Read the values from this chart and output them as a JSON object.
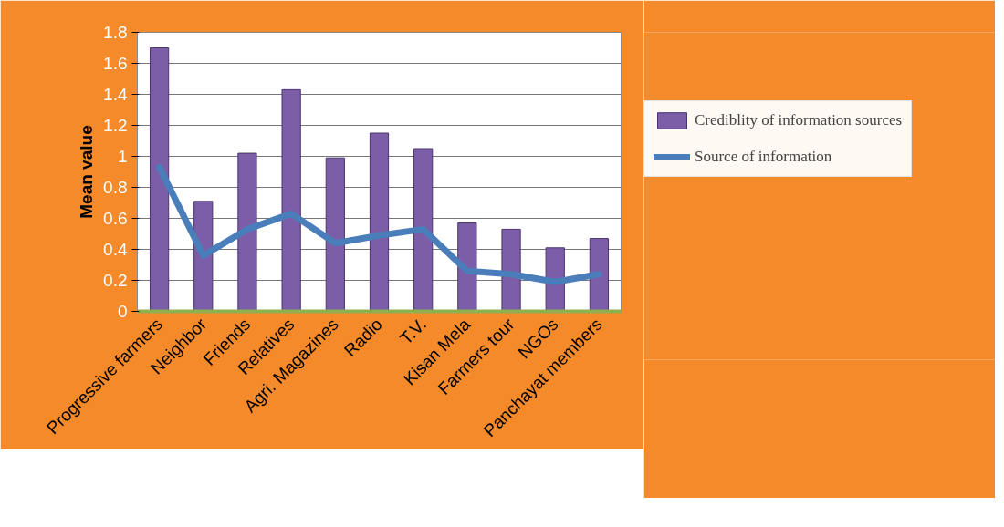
{
  "chart_data": {
    "type": "bar",
    "ylabel": "Mean value",
    "categories": [
      "Progressive farmers",
      "Neighbor",
      "Friends",
      "Relatives",
      "Agri. Magazines",
      "Radio",
      "T.V.",
      "Kisan Mela",
      "Farmers tour",
      "NGOs",
      "Panchayat members"
    ],
    "series": [
      {
        "name": "Crediblity of information sources",
        "color": "#7b5ea7",
        "values": [
          1.7,
          0.71,
          1.02,
          1.43,
          0.99,
          1.15,
          1.05,
          0.57,
          0.53,
          0.41,
          0.47
        ]
      },
      {
        "name": "Source of information",
        "type": "line",
        "color": "#4a7ebb",
        "values": [
          0.93,
          0.36,
          0.53,
          0.63,
          0.44,
          0.49,
          0.53,
          0.26,
          0.24,
          0.19,
          0.24
        ]
      }
    ],
    "ylim": [
      0,
      1.8
    ],
    "yticks": [
      0,
      0.2,
      0.4,
      0.6,
      0.8,
      1,
      1.2,
      1.4,
      1.6,
      1.8
    ],
    "grid": "y",
    "legend": "right"
  }
}
